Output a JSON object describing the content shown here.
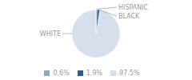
{
  "chart_data": {
    "type": "pie",
    "categories": [
      "WHITE",
      "HISPANIC",
      "BLACK"
    ],
    "values": [
      97.5,
      1.9,
      0.6
    ],
    "value_labels": [
      "97.5%",
      "1.9%",
      "0.6%"
    ],
    "colors": [
      "#d5e0eb",
      "#2e5f8a",
      "#8aaabf"
    ],
    "legend": "bottom"
  }
}
